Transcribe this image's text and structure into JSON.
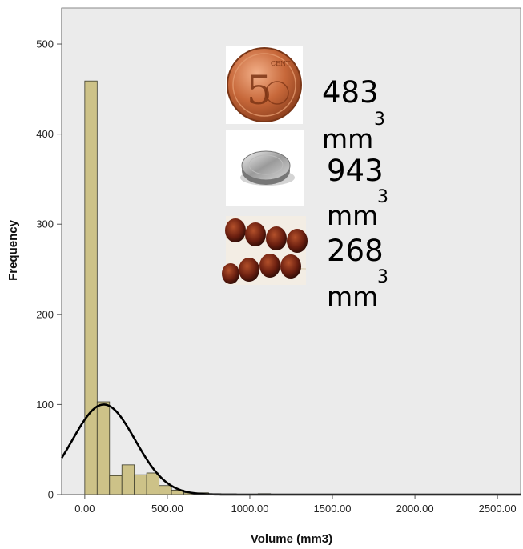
{
  "chart_data": {
    "type": "bar",
    "subtype": "histogram",
    "xlabel": "Volume (mm3)",
    "ylabel": "Frequency",
    "xlim": [
      -140,
      2640
    ],
    "ylim": [
      0,
      540
    ],
    "x_ticks": [
      0,
      500,
      1000,
      1500,
      2000,
      2500
    ],
    "x_tick_labels": [
      "0.00",
      "500.00",
      "1000.00",
      "1500.00",
      "2000.00",
      "2500.00"
    ],
    "y_ticks": [
      0,
      100,
      200,
      300,
      400,
      500
    ],
    "y_tick_labels": [
      "0",
      "100",
      "200",
      "300",
      "400",
      "500"
    ],
    "bin_width": 75,
    "bin_start": 0,
    "bin_counts": [
      459,
      103,
      21,
      33,
      22,
      24,
      10,
      5,
      2,
      2,
      1,
      0,
      0,
      0,
      1,
      0,
      0,
      0,
      0,
      0,
      0,
      0,
      0,
      0,
      0,
      0,
      0,
      0,
      0,
      0,
      0,
      0,
      0,
      0
    ],
    "normal_curve": {
      "mean": 115,
      "sd": 190,
      "peak": 100
    },
    "colors": {
      "bar_fill": "#cdc288",
      "bar_stroke": "#3a3a2a",
      "plot_bg": "#ebebeb",
      "curve": "#000000"
    },
    "grid": false,
    "annotations": [
      {
        "icon": "coin-icon",
        "value": "483",
        "unit": "mm",
        "exponent": "3"
      },
      {
        "icon": "battery-icon",
        "value": "943",
        "unit": "mm",
        "exponent": "3"
      },
      {
        "icon": "beads-icon",
        "value": "268",
        "unit": "mm",
        "exponent": "3"
      }
    ]
  }
}
